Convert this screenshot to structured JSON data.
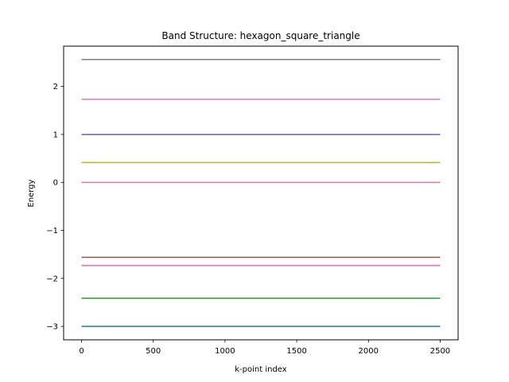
{
  "chart_data": {
    "type": "line",
    "title": "Band Structure: hexagon_square_triangle",
    "xlabel": "k-point index",
    "ylabel": "Energy",
    "xlim": [
      -125,
      2625
    ],
    "ylim": [
      -3.28,
      2.84
    ],
    "xticks": [
      0,
      500,
      1000,
      1500,
      2000,
      2500
    ],
    "yticks": [
      -3,
      -2,
      -1,
      0,
      1,
      2
    ],
    "x_range": [
      0,
      2500
    ],
    "grid": false,
    "series": [
      {
        "values": [
          -3.0,
          -3.0
        ],
        "color": "#1f77b4"
      },
      {
        "values": [
          -2.414,
          -2.414
        ],
        "color": "#2ca02c"
      },
      {
        "values": [
          -1.732,
          -1.732
        ],
        "color": "#9467bd"
      },
      {
        "values": [
          -1.732,
          -1.732
        ],
        "color": "#e377c2"
      },
      {
        "values": [
          -1.562,
          -1.562
        ],
        "color": "#8c564b"
      },
      {
        "values": [
          0.0,
          0.0
        ],
        "color": "#e377c2"
      },
      {
        "values": [
          0.414,
          0.414
        ],
        "color": "#bcbd22"
      },
      {
        "values": [
          1.0,
          1.0
        ],
        "color": "#17becf"
      },
      {
        "values": [
          1.0,
          1.0
        ],
        "color": "#9467bd"
      },
      {
        "values": [
          1.732,
          1.732
        ],
        "color": "#e377c2"
      },
      {
        "values": [
          2.562,
          2.562
        ],
        "color": "#7f7f7f"
      }
    ]
  }
}
